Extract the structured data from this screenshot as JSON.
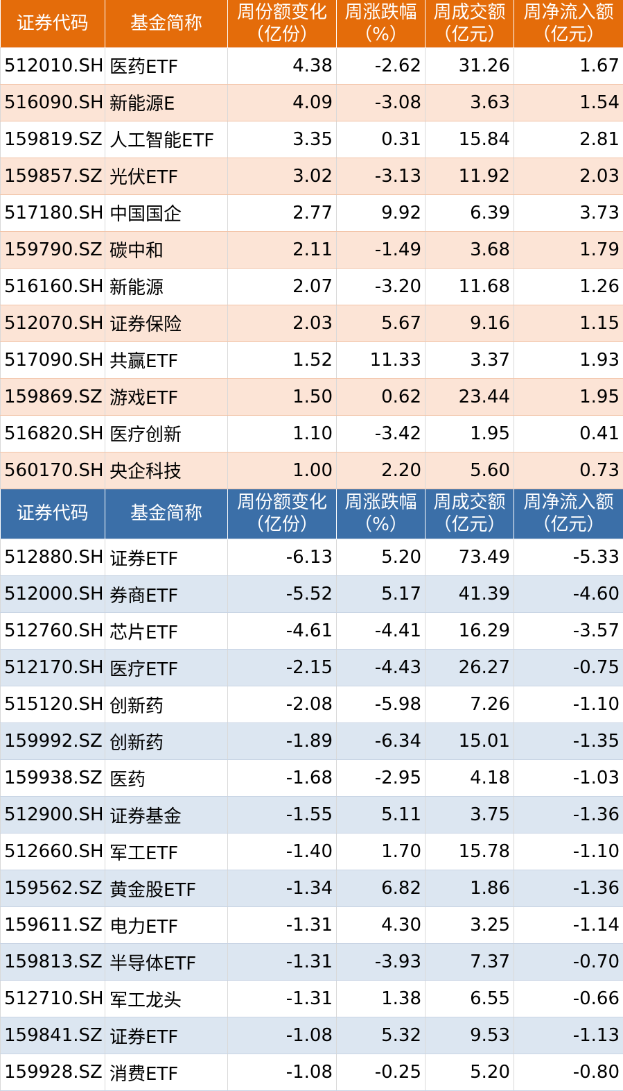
{
  "headers": {
    "code": "证券代码",
    "name": "基金简称",
    "share_change": [
      "周份额变化",
      "（亿份）"
    ],
    "pct_change": [
      "周涨跌幅",
      "（%）"
    ],
    "turnover": [
      "周成交额",
      "（亿元）"
    ],
    "net_inflow": [
      "周净流入额",
      "（亿元）"
    ]
  },
  "colors": {
    "top_header": "#e46c0a",
    "top_alt_row": "#fce4d6",
    "bottom_header": "#3b6fa8",
    "bottom_alt_row": "#dce6f1"
  },
  "top_table": [
    [
      "512010.SH",
      "医药ETF",
      "4.38",
      "-2.62",
      "31.26",
      "1.67"
    ],
    [
      "516090.SH",
      "新能源E",
      "4.09",
      "-3.08",
      "3.63",
      "1.54"
    ],
    [
      "159819.SZ",
      "人工智能ETF",
      "3.35",
      "0.31",
      "15.84",
      "2.81"
    ],
    [
      "159857.SZ",
      "光伏ETF",
      "3.02",
      "-3.13",
      "11.92",
      "2.03"
    ],
    [
      "517180.SH",
      "中国国企",
      "2.77",
      "9.92",
      "6.39",
      "3.73"
    ],
    [
      "159790.SZ",
      "碳中和",
      "2.11",
      "-1.49",
      "3.68",
      "1.79"
    ],
    [
      "516160.SH",
      "新能源",
      "2.07",
      "-3.20",
      "11.68",
      "1.26"
    ],
    [
      "512070.SH",
      "证券保险",
      "2.03",
      "5.67",
      "9.16",
      "1.15"
    ],
    [
      "517090.SH",
      "共赢ETF",
      "1.52",
      "11.33",
      "3.37",
      "1.93"
    ],
    [
      "159869.SZ",
      "游戏ETF",
      "1.50",
      "0.62",
      "23.44",
      "1.95"
    ],
    [
      "516820.SH",
      "医疗创新",
      "1.10",
      "-3.42",
      "1.95",
      "0.41"
    ],
    [
      "560170.SH",
      "央企科技",
      "1.00",
      "2.20",
      "5.60",
      "0.73"
    ]
  ],
  "bottom_table": [
    [
      "512880.SH",
      "证券ETF",
      "-6.13",
      "5.20",
      "73.49",
      "-5.33"
    ],
    [
      "512000.SH",
      "券商ETF",
      "-5.52",
      "5.17",
      "41.39",
      "-4.60"
    ],
    [
      "512760.SH",
      "芯片ETF",
      "-4.61",
      "-4.41",
      "16.29",
      "-3.57"
    ],
    [
      "512170.SH",
      "医疗ETF",
      "-2.15",
      "-4.43",
      "26.27",
      "-0.75"
    ],
    [
      "515120.SH",
      "创新药",
      "-2.08",
      "-5.98",
      "7.26",
      "-1.10"
    ],
    [
      "159992.SZ",
      "创新药",
      "-1.89",
      "-6.34",
      "15.01",
      "-1.35"
    ],
    [
      "159938.SZ",
      "医药",
      "-1.68",
      "-2.95",
      "4.18",
      "-1.03"
    ],
    [
      "512900.SH",
      "证券基金",
      "-1.55",
      "5.11",
      "3.75",
      "-1.36"
    ],
    [
      "512660.SH",
      "军工ETF",
      "-1.40",
      "1.70",
      "15.78",
      "-1.10"
    ],
    [
      "159562.SZ",
      "黄金股ETF",
      "-1.34",
      "6.82",
      "1.86",
      "-1.36"
    ],
    [
      "159611.SZ",
      "电力ETF",
      "-1.31",
      "4.30",
      "3.25",
      "-1.14"
    ],
    [
      "159813.SZ",
      "半导体ETF",
      "-1.31",
      "-3.93",
      "7.37",
      "-0.70"
    ],
    [
      "512710.SH",
      "军工龙头",
      "-1.31",
      "1.38",
      "6.55",
      "-0.66"
    ],
    [
      "159841.SZ",
      "证券ETF",
      "-1.08",
      "5.32",
      "9.53",
      "-1.13"
    ],
    [
      "159928.SZ",
      "消费ETF",
      "-1.08",
      "-0.25",
      "5.20",
      "-0.80"
    ]
  ]
}
